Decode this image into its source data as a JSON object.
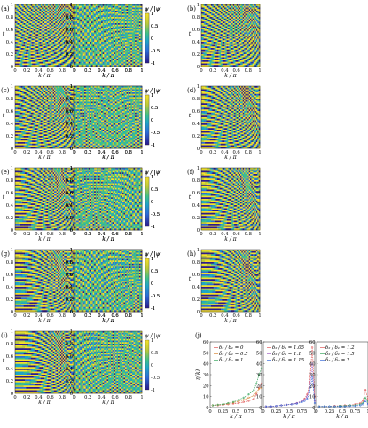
{
  "axis_labels": {
    "x": "k / π",
    "y": "t",
    "cbar": "ψ / |ψ|"
  },
  "ticks": {
    "x_left": [
      "0",
      "0.2",
      "0.4",
      "0.6",
      "0.8",
      "1"
    ],
    "x_right": [
      "0",
      "0.2",
      "0.4",
      "0.6",
      "0.8",
      "1"
    ],
    "y_left": [
      "0",
      "0.2",
      "0.4",
      "0.6",
      "0.8",
      "1"
    ],
    "y_right": [
      "0",
      "0.2",
      "0.4",
      "0.6",
      "0.8",
      "1"
    ],
    "cbar": [
      "1",
      "0.5",
      "0",
      "-0.5",
      "-1"
    ]
  },
  "panels": [
    {
      "letter": "(a)"
    },
    {
      "letter": "(b)"
    },
    {
      "letter": "(c)"
    },
    {
      "letter": "(d)"
    },
    {
      "letter": "(e)"
    },
    {
      "letter": "(f)"
    },
    {
      "letter": "(g)"
    },
    {
      "letter": "(h)"
    },
    {
      "letter": "(i)"
    }
  ],
  "colormap": [
    "#2c1a8c",
    "#2c6bd8",
    "#1fa5c6",
    "#3fbf8a",
    "#bcc93a",
    "#f5e02a"
  ],
  "chart_data": {
    "type": "line",
    "panel_letter": "(j)",
    "ylabel": "η(k)",
    "xlabel": "k / π",
    "yticks": [
      "0",
      "10",
      "20",
      "30",
      "40",
      "50",
      "60"
    ],
    "xticks": [
      "0",
      "0.25",
      "0.5",
      "0.75",
      "1"
    ],
    "ylim": [
      0,
      60
    ],
    "xlim": [
      0,
      1
    ],
    "subplots": [
      {
        "series": [
          {
            "name": "δ₂ / δ₁ = 0",
            "color": "#e05858",
            "x": [
              0.05,
              0.15,
              0.25,
              0.35,
              0.45,
              0.55,
              0.65,
              0.75,
              0.85,
              0.9,
              0.95,
              1.0
            ],
            "y": [
              2,
              2,
              2.5,
              3,
              3.5,
              4,
              5,
              6,
              8,
              12,
              18,
              22
            ]
          },
          {
            "name": "δ₂ / δ₁ = 0.5",
            "color": "#d88a3a",
            "x": [
              0.05,
              0.15,
              0.25,
              0.35,
              0.45,
              0.55,
              0.65,
              0.75,
              0.85,
              0.9,
              0.95,
              1.0
            ],
            "y": [
              2,
              2.5,
              3,
              3.5,
              4.5,
              5.5,
              7,
              9,
              11,
              14,
              17,
              18
            ]
          },
          {
            "name": "δ₂ / δ₁ = 1",
            "color": "#3aa860",
            "x": [
              0.05,
              0.15,
              0.25,
              0.35,
              0.45,
              0.55,
              0.65,
              0.75,
              0.85,
              0.9,
              0.95,
              1.0
            ],
            "y": [
              2,
              2.5,
              3,
              4,
              5,
              7,
              9,
              12,
              16,
              22,
              30,
              36
            ]
          }
        ]
      },
      {
        "series": [
          {
            "name": "δ₂ / δ₁ = 1.05",
            "color": "#e05858",
            "x": [
              0.05,
              0.15,
              0.25,
              0.35,
              0.45,
              0.55,
              0.65,
              0.75,
              0.8,
              0.85,
              0.9,
              0.95,
              1.0
            ],
            "y": [
              1,
              1,
              1.5,
              2,
              2.5,
              3,
              4,
              6,
              8,
              12,
              22,
              55,
              10
            ]
          },
          {
            "name": "δ₂ / δ₁ = 1.1",
            "color": "#a060c0",
            "x": [
              0.05,
              0.15,
              0.25,
              0.35,
              0.45,
              0.55,
              0.65,
              0.75,
              0.8,
              0.85,
              0.9,
              0.95,
              1.0
            ],
            "y": [
              1,
              1,
              1.5,
              2,
              2.5,
              3,
              4,
              6,
              7,
              10,
              18,
              40,
              6
            ]
          },
          {
            "name": "δ₂ / δ₁ = 1.15",
            "color": "#3a6ad8",
            "x": [
              0.05,
              0.15,
              0.25,
              0.35,
              0.45,
              0.55,
              0.65,
              0.75,
              0.8,
              0.85,
              0.9,
              0.95,
              1.0
            ],
            "y": [
              1,
              1,
              1.5,
              2,
              2.5,
              3,
              3.5,
              5,
              6,
              8,
              14,
              28,
              4
            ]
          }
        ]
      },
      {
        "series": [
          {
            "name": "δ₂ / δ₁ = 1.2",
            "color": "#e05858",
            "x": [
              0.05,
              0.15,
              0.25,
              0.35,
              0.45,
              0.55,
              0.65,
              0.75,
              0.85,
              0.9,
              0.95,
              1.0
            ],
            "y": [
              1,
              1,
              1,
              1.5,
              1.5,
              2,
              2,
              3,
              4,
              6,
              16,
              8
            ]
          },
          {
            "name": "δ₂ / δ₁ = 1.5",
            "color": "#3aa860",
            "x": [
              0.05,
              0.15,
              0.25,
              0.35,
              0.45,
              0.55,
              0.65,
              0.75,
              0.85,
              0.9,
              0.95,
              1.0
            ],
            "y": [
              1,
              1,
              1,
              1,
              1.5,
              1.5,
              2,
              2,
              3,
              4,
              9,
              5
            ]
          },
          {
            "name": "δ₂ / δ₁ = 2",
            "color": "#3a6ad8",
            "x": [
              0.05,
              0.15,
              0.25,
              0.35,
              0.45,
              0.55,
              0.65,
              0.75,
              0.85,
              0.9,
              0.95,
              1.0
            ],
            "y": [
              1,
              1,
              1,
              1,
              1,
              1,
              1.5,
              1.5,
              2,
              3,
              6,
              3
            ]
          }
        ]
      }
    ]
  }
}
